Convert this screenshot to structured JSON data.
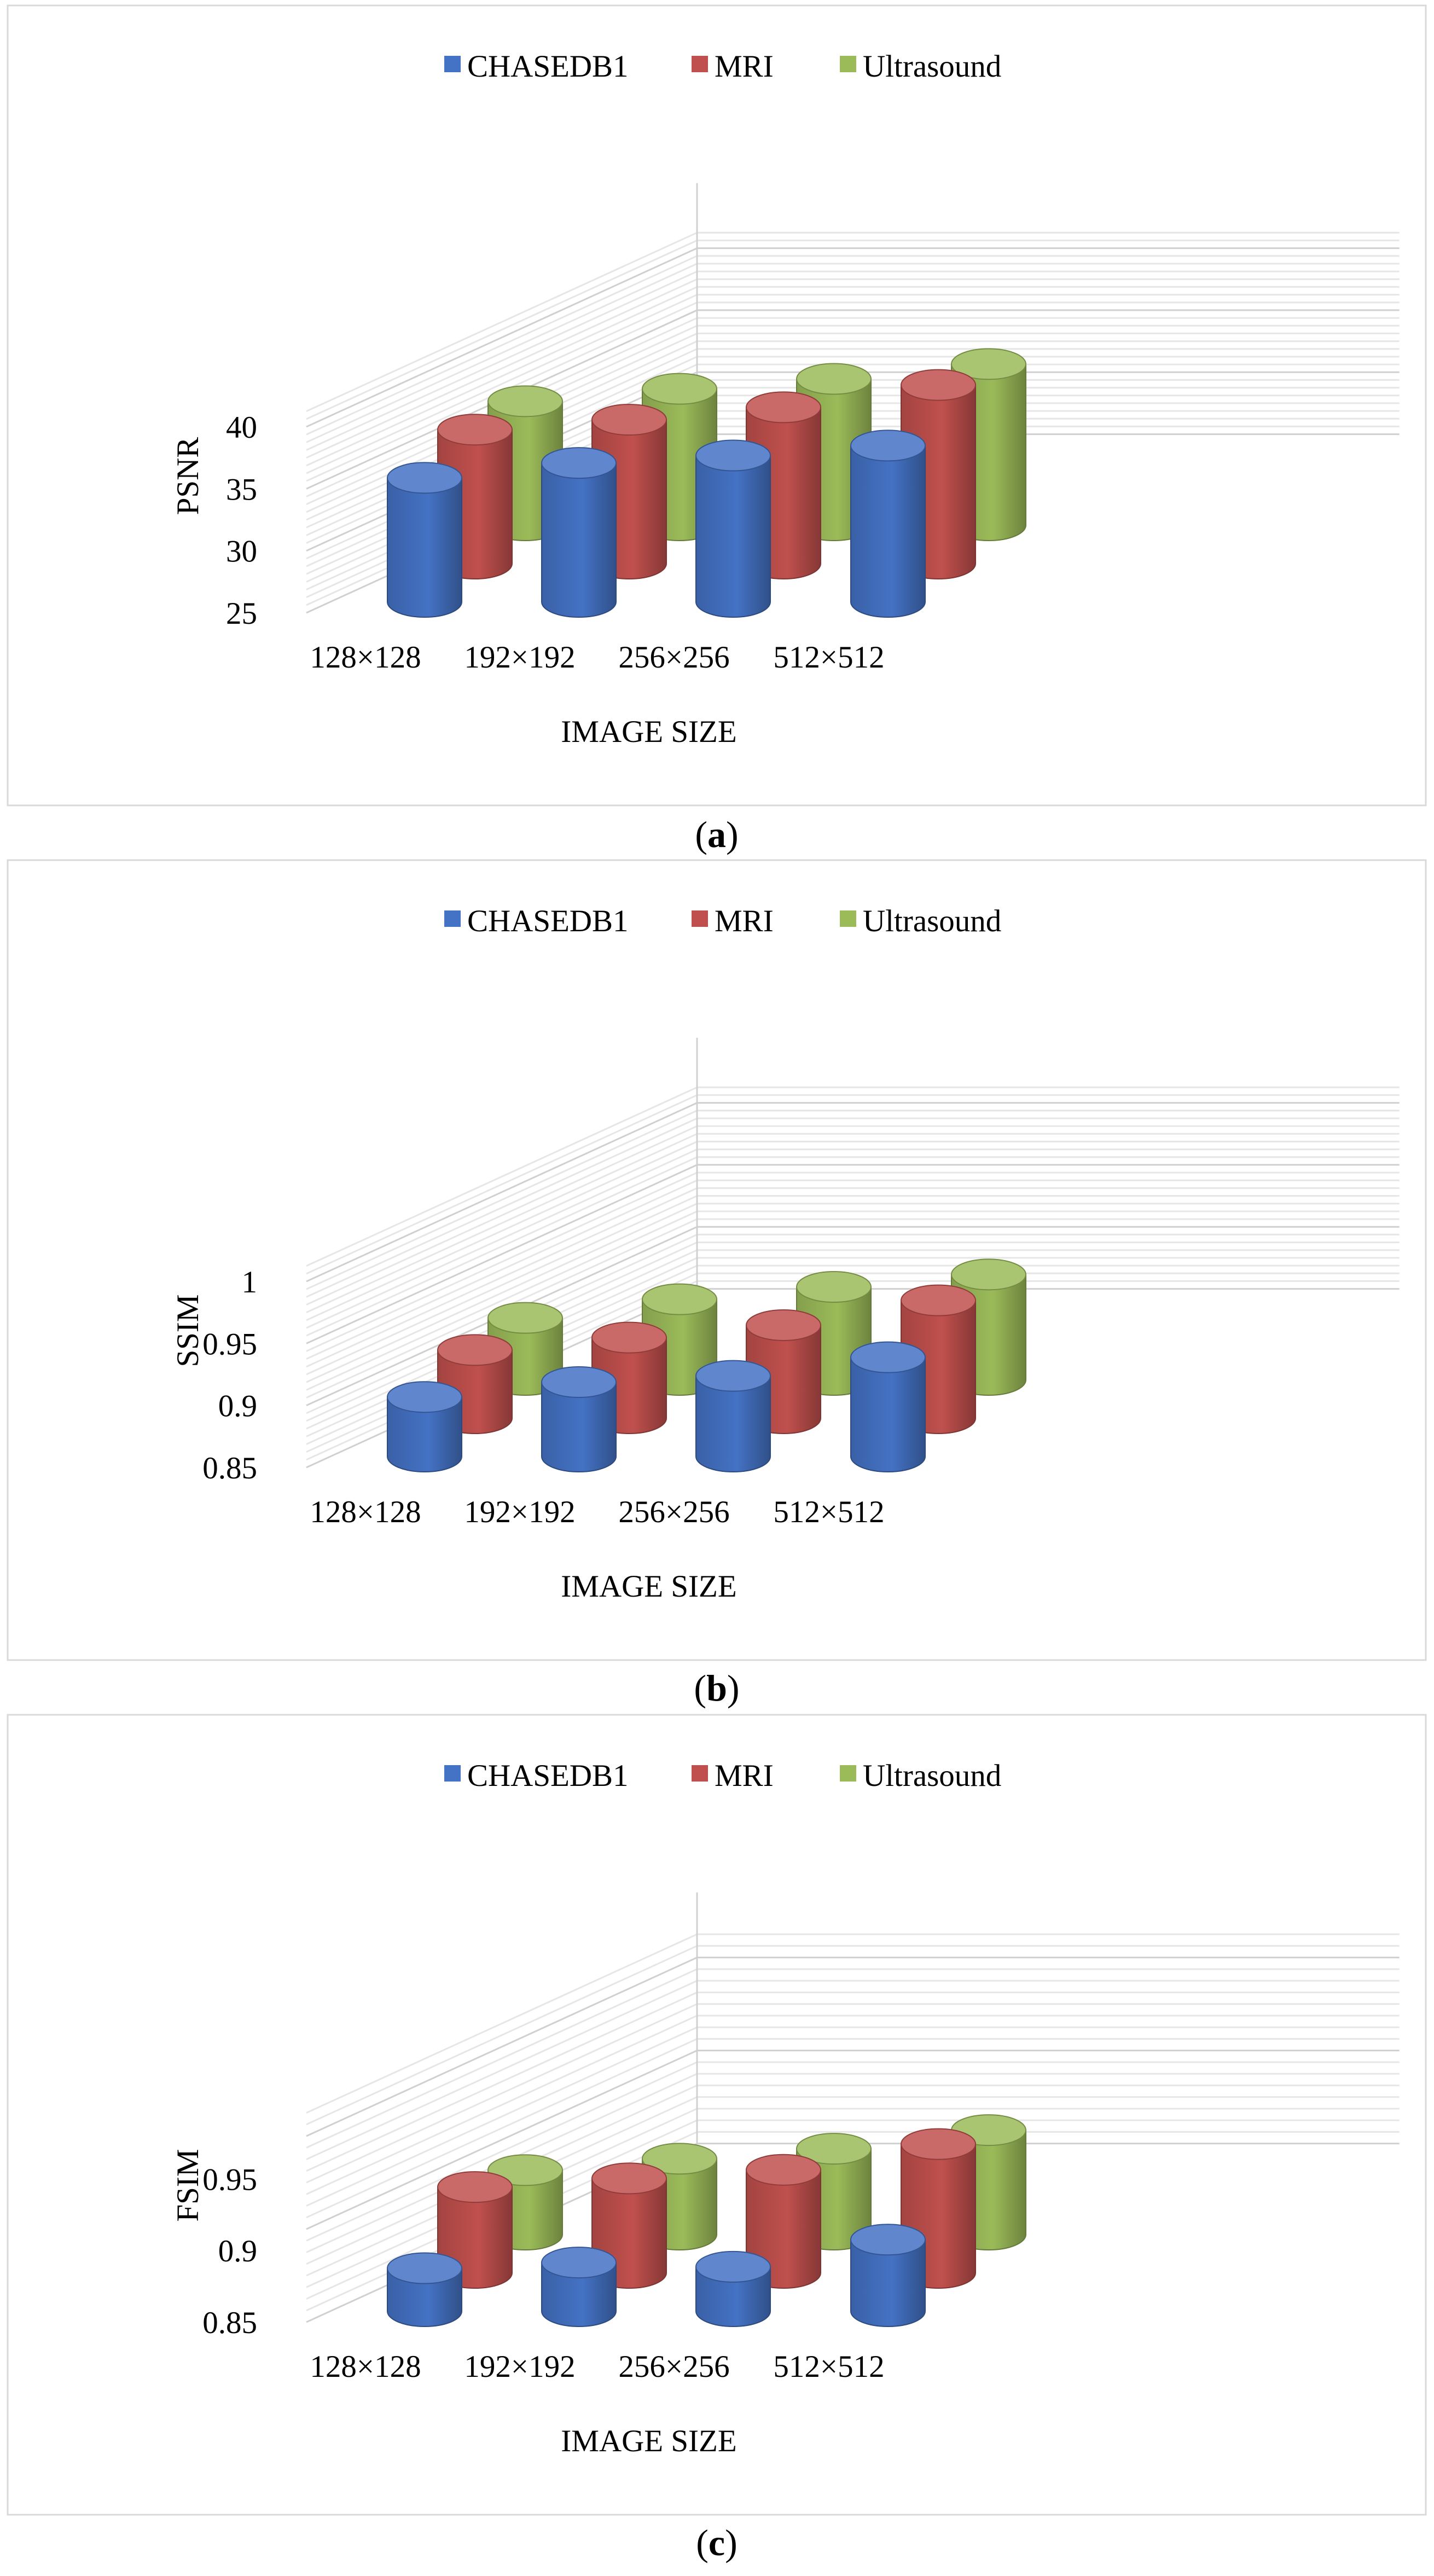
{
  "legend": [
    {
      "name": "CHASEDB1",
      "color": "#4472C4"
    },
    {
      "name": "MRI",
      "color": "#C0504D"
    },
    {
      "name": "Ultrasound",
      "color": "#9BBB59"
    }
  ],
  "chart_data": [
    {
      "type": "bar",
      "style": "3d-cylinder",
      "panel": "a",
      "xlabel": "IMAGE SIZE",
      "ylabel": "PSNR",
      "categories": [
        "128×128",
        "192×192",
        "256×256",
        "512×512"
      ],
      "yticks": [
        "25",
        "30",
        "35",
        "40"
      ],
      "ylim": [
        25,
        40
      ],
      "grid": true,
      "legend_position": "top",
      "series": [
        {
          "name": "CHASEDB1",
          "values": [
            35.0,
            36.2,
            36.8,
            37.6
          ]
        },
        {
          "name": "MRI",
          "values": [
            35.8,
            36.6,
            37.6,
            39.4
          ]
        },
        {
          "name": "Ultrasound",
          "values": [
            35.0,
            36.0,
            36.8,
            38.0
          ]
        }
      ]
    },
    {
      "type": "bar",
      "style": "3d-cylinder",
      "panel": "b",
      "xlabel": "IMAGE SIZE",
      "ylabel": "SSIM",
      "categories": [
        "128×128",
        "192×192",
        "256×256",
        "512×512"
      ],
      "yticks": [
        "0.85",
        "0.9",
        "0.95",
        "1"
      ],
      "ylim": [
        0.85,
        1.0
      ],
      "grid": true,
      "legend_position": "top",
      "series": [
        {
          "name": "CHASEDB1",
          "values": [
            0.898,
            0.91,
            0.915,
            0.93
          ]
        },
        {
          "name": "MRI",
          "values": [
            0.905,
            0.915,
            0.925,
            0.945
          ]
        },
        {
          "name": "Ultrasound",
          "values": [
            0.9,
            0.915,
            0.925,
            0.935
          ]
        }
      ]
    },
    {
      "type": "bar",
      "style": "3d-cylinder",
      "panel": "c",
      "xlabel": "IMAGE SIZE",
      "ylabel": "FSIM",
      "categories": [
        "128×128",
        "192×192",
        "256×256",
        "512×512"
      ],
      "yticks": [
        "0.85",
        "0.9",
        "0.95"
      ],
      "ylim": [
        0.85,
        0.98
      ],
      "grid": true,
      "legend_position": "top",
      "series": [
        {
          "name": "CHASEDB1",
          "values": [
            0.88,
            0.884,
            0.881,
            0.9
          ]
        },
        {
          "name": "MRI",
          "values": [
            0.91,
            0.916,
            0.922,
            0.94
          ]
        },
        {
          "name": "Ultrasound",
          "values": [
            0.895,
            0.903,
            0.91,
            0.923
          ]
        }
      ]
    }
  ],
  "panel_labels": [
    "(a)",
    "(b)",
    "(c)"
  ]
}
